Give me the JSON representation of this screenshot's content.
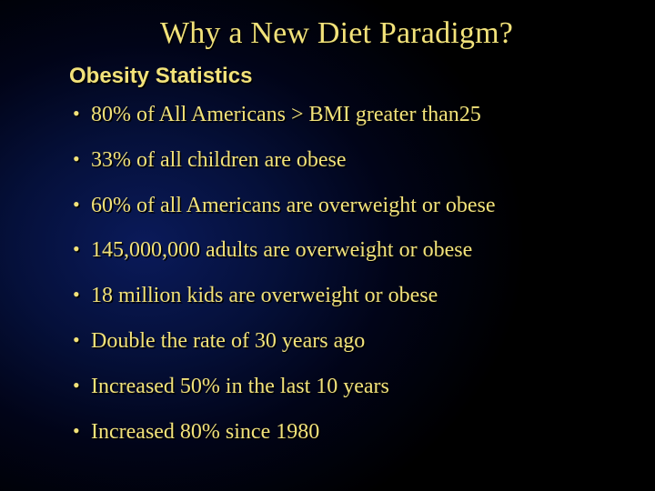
{
  "colors": {
    "text": "#f2e27a",
    "text_shadow": "#000000",
    "background_center": "#0a1a5a",
    "background_edge": "#000000"
  },
  "typography": {
    "title_fontsize": 34,
    "subtitle_fontsize": 24,
    "bullet_fontsize": 24,
    "title_family": "Times New Roman",
    "subtitle_family": "Verdana",
    "bullet_family": "Times New Roman"
  },
  "title": "Why a New Diet Paradigm?",
  "subtitle": "Obesity Statistics",
  "bullets": [
    "80% of All Americans > BMI greater than25",
    "33% of all children are obese",
    "60% of all Americans are overweight or obese",
    "145,000,000 adults are overweight or obese",
    "18 million kids are overweight or obese",
    "Double the rate of 30 years ago",
    "Increased 50% in the last 10 years",
    "Increased 80% since 1980"
  ]
}
